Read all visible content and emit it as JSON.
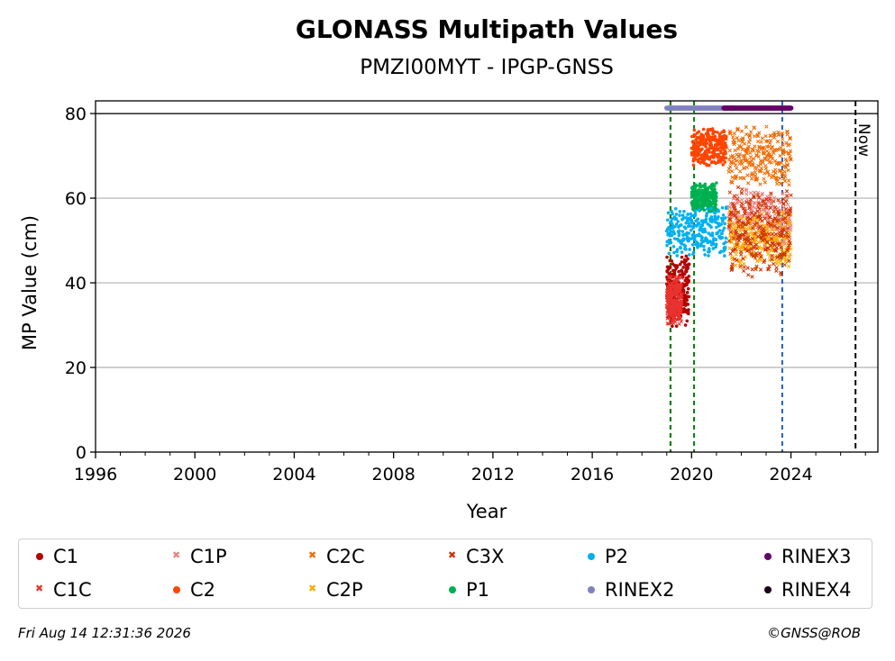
{
  "chart_data": {
    "type": "scatter",
    "title": "GLONASS Multipath Values",
    "subtitle": "PMZI00MYT - IPGP-GNSS",
    "xlabel": "Year",
    "ylabel": "MP Value (cm)",
    "xlim": [
      1996,
      2027.5
    ],
    "ylim": [
      0,
      83
    ],
    "xticks": [
      "1996",
      "2000",
      "2004",
      "2008",
      "2012",
      "2016",
      "2020",
      "2024"
    ],
    "yticks": [
      "0",
      "20",
      "40",
      "60",
      "80"
    ],
    "grid": "horizontal",
    "reference_line_y": 80,
    "now_label": "Now",
    "now_x": 2026.6,
    "vertical_markers": [
      {
        "x": 2019.15,
        "color": "#c00000"
      },
      {
        "x": 2019.15,
        "color": "#007f00"
      },
      {
        "x": 2020.1,
        "color": "#007f00"
      },
      {
        "x": 2023.65,
        "color": "#1f5fbf"
      }
    ],
    "series": [
      {
        "name": "C1",
        "color": "#b30000",
        "marker": "dot",
        "x_range": [
          2019.0,
          2019.9
        ],
        "y_center": 38,
        "y_spread": 7
      },
      {
        "name": "C1C",
        "color": "#e8332f",
        "marker": "x",
        "x_range": [
          2019.0,
          2019.6
        ],
        "y_center": 36,
        "y_spread": 5
      },
      {
        "name": "C1P",
        "color": "#f08080",
        "marker": "x",
        "x_range": [
          2021.5,
          2024.0
        ],
        "y_center": 55,
        "y_spread": 6
      },
      {
        "name": "C2",
        "color": "#ff4500",
        "marker": "dot",
        "x_range": [
          2020.0,
          2021.4
        ],
        "y_center": 72,
        "y_spread": 4
      },
      {
        "name": "C2C",
        "color": "#f06a00",
        "marker": "x",
        "x_range": [
          2021.5,
          2024.0
        ],
        "y_center": 70,
        "y_spread": 6
      },
      {
        "name": "C2P",
        "color": "#ffaa00",
        "marker": "x",
        "x_range": [
          2021.5,
          2024.0
        ],
        "y_center": 50,
        "y_spread": 6
      },
      {
        "name": "C3X",
        "color": "#cc3300",
        "marker": "x",
        "x_range": [
          2021.5,
          2024.0
        ],
        "y_center": 52,
        "y_spread": 9
      },
      {
        "name": "P1",
        "color": "#00b050",
        "marker": "dot",
        "x_range": [
          2020.0,
          2021.0
        ],
        "y_center": 60,
        "y_spread": 3
      },
      {
        "name": "P2",
        "color": "#00b0f0",
        "marker": "dot",
        "x_range": [
          2019.0,
          2021.4
        ],
        "y_center": 52,
        "y_spread": 5
      },
      {
        "name": "RINEX2",
        "color": "#8080c0",
        "marker": "dot",
        "x_range": [
          2019.0,
          2021.7
        ],
        "y_center": 81.3,
        "y_spread": 0
      },
      {
        "name": "RINEX3",
        "color": "#660066",
        "marker": "dot",
        "x_range": [
          2021.3,
          2024.0
        ],
        "y_center": 81.3,
        "y_spread": 0
      },
      {
        "name": "RINEX4",
        "color": "#1a001a",
        "marker": "dot",
        "x_range": [],
        "y_center": 81.3,
        "y_spread": 0
      }
    ]
  },
  "legend": [
    {
      "label": "C1",
      "color": "#b30000",
      "marker": "dot"
    },
    {
      "label": "C1C",
      "color": "#e8332f",
      "marker": "x"
    },
    {
      "label": "C1P",
      "color": "#f08080",
      "marker": "x"
    },
    {
      "label": "C2",
      "color": "#ff4500",
      "marker": "dot"
    },
    {
      "label": "C2C",
      "color": "#f06a00",
      "marker": "x"
    },
    {
      "label": "C2P",
      "color": "#ffaa00",
      "marker": "x"
    },
    {
      "label": "C3X",
      "color": "#cc3300",
      "marker": "x"
    },
    {
      "label": "P1",
      "color": "#00b050",
      "marker": "dot"
    },
    {
      "label": "P2",
      "color": "#00b0f0",
      "marker": "dot"
    },
    {
      "label": "RINEX2",
      "color": "#8080c0",
      "marker": "dot"
    },
    {
      "label": "RINEX3",
      "color": "#660066",
      "marker": "dot"
    },
    {
      "label": "RINEX4",
      "color": "#1a001a",
      "marker": "dot"
    }
  ],
  "footer": {
    "timestamp": "Fri Aug 14 12:31:36 2026",
    "credit": "©GNSS@ROB"
  }
}
